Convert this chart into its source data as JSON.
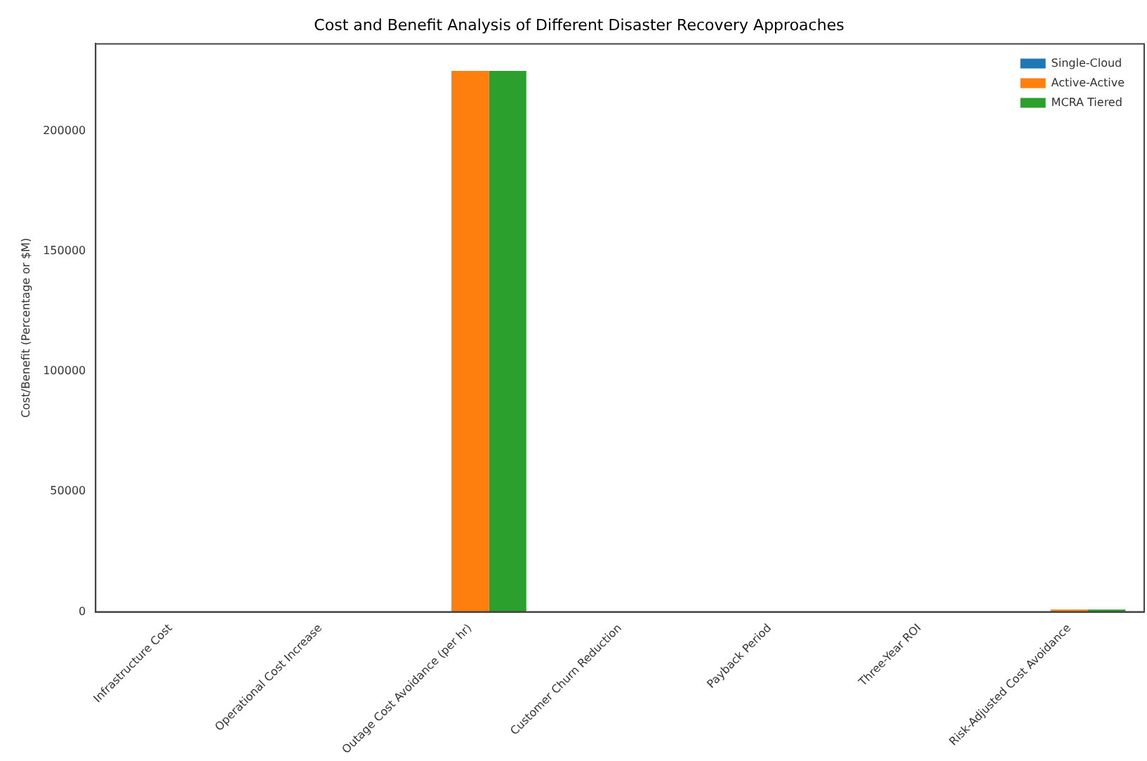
{
  "chart_data": {
    "type": "bar",
    "title": "Cost and Benefit Analysis of Different Disaster Recovery Approaches",
    "ylabel": "Cost/Benefit (Percentage or $M)",
    "categories": [
      "Infrastructure Cost",
      "Operational Cost Increase",
      "Outage Cost Avoidance (per hr)",
      "Customer Churn Reduction",
      "Payback Period",
      "Three-Year ROI",
      "Risk-Adjusted Cost Avoidance"
    ],
    "series": [
      {
        "name": "Single-Cloud",
        "color": "#1f77b4",
        "values": [
          0,
          0,
          0,
          0,
          0,
          0,
          0
        ]
      },
      {
        "name": "Active-Active",
        "color": "#ff7f0e",
        "values": [
          0,
          0,
          225000,
          0,
          0,
          0,
          1000
        ]
      },
      {
        "name": "MCRA Tiered",
        "color": "#2ca02c",
        "values": [
          0,
          0,
          225000,
          0,
          0,
          0,
          1000
        ]
      }
    ],
    "ylim": [
      0,
      236250
    ],
    "yticks": [
      0,
      50000,
      100000,
      150000,
      200000
    ],
    "grid": false,
    "legend": "top right"
  }
}
